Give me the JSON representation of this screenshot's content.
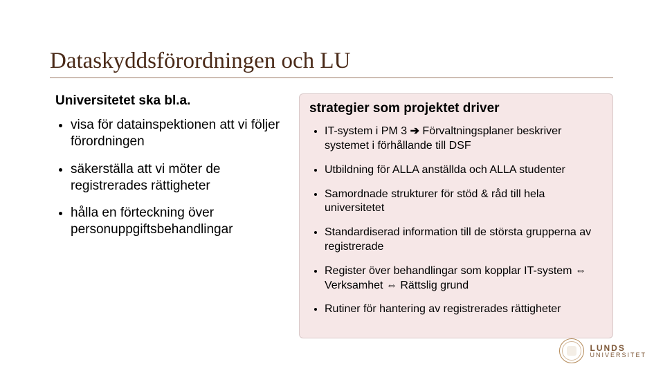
{
  "colors": {
    "title": "#4a2a18",
    "rule": "#9c7a66",
    "text": "#000000",
    "right_bg": "#f6e7e7",
    "right_border": "#d9c9c9",
    "seal": "#b58b5a",
    "logo_text": "#7f5a3a"
  },
  "typography": {
    "title_pt": 33,
    "subhead_pt": 19,
    "left_body_pt": 19,
    "right_body_pt": 16,
    "logo_l1_pt": 12,
    "logo_l2_pt": 9
  },
  "title": "Dataskyddsförordningen och LU",
  "left": {
    "heading": "Universitetet ska bl.a.",
    "items": [
      "visa för datainspektionen att vi följer förordningen",
      "säkerställa att vi möter de registrerades rättigheter",
      "hålla en förteckning över personuppgiftsbehandlingar"
    ]
  },
  "right": {
    "heading": "strategier som projektet driver",
    "items": [
      {
        "pre": "IT-system i PM 3 ",
        "arrow": "➔",
        "post": " Förvaltningsplaner beskriver systemet i förhållande till DSF"
      },
      {
        "pre": "Utbildning för ALLA anställda och ALLA studenter",
        "arrow": "",
        "post": ""
      },
      {
        "pre": "Samordnade strukturer för stöd & råd till hela universitetet",
        "arrow": "",
        "post": ""
      },
      {
        "pre": "Standardiserad information till de största grupperna av registrerade",
        "arrow": "",
        "post": ""
      },
      {
        "pre": "Register över behandlingar som kopplar IT-system ",
        "arrow": "⇔",
        "post": " Verksamhet ⇔ Rättslig grund"
      },
      {
        "pre": "Rutiner för hantering av registrerades rättigheter",
        "arrow": "",
        "post": ""
      }
    ]
  },
  "logo": {
    "line1": "LUNDS",
    "line2": "UNIVERSITET"
  }
}
